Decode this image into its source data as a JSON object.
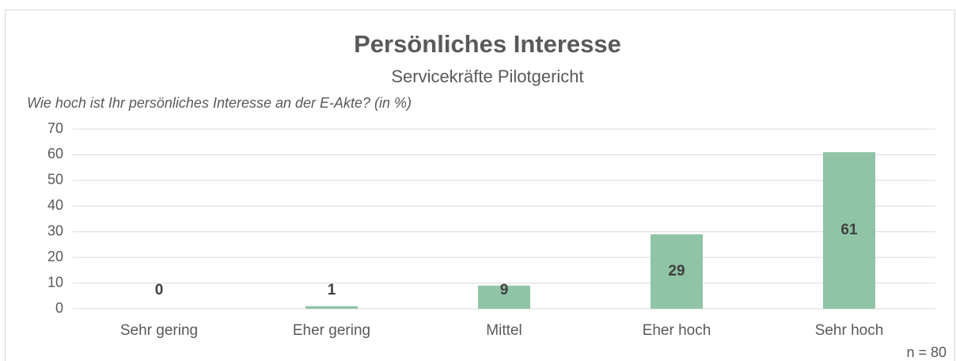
{
  "chart_data": {
    "type": "bar",
    "title": "Persönliches Interesse",
    "subtitle": "Servicekräfte Pilotgericht",
    "y_label": "Wie hoch ist Ihr persönliches Interesse an der E-Akte? (in %)",
    "note": "n = 80",
    "categories": [
      "Sehr gering",
      "Eher gering",
      "Mittel",
      "Eher hoch",
      "Sehr hoch"
    ],
    "values": [
      0,
      1,
      9,
      29,
      61
    ],
    "color": "#8fc4a6",
    "ylim": [
      0,
      70
    ],
    "yticks": [
      0,
      10,
      20,
      30,
      40,
      50,
      60,
      70
    ],
    "grid": true
  }
}
